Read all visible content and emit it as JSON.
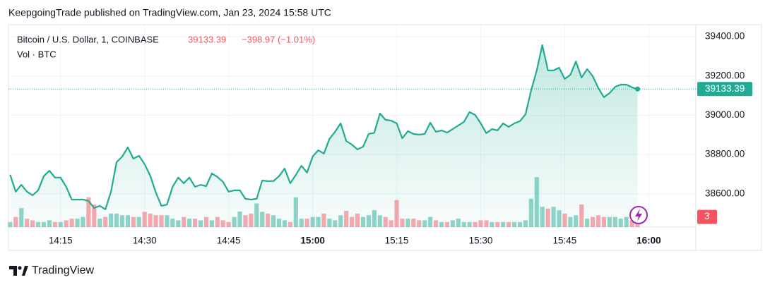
{
  "header": "KeepgoingTrade published on TradingView.com, Jan 23, 2024 15:58 UTC",
  "footer": "TradingView",
  "chart_data": {
    "type": "area",
    "change": "−398.97 (−1.01%)",
    "x": [
      846,
      847,
      848,
      849,
      850,
      851,
      852,
      853,
      854,
      855,
      856,
      857,
      858,
      859,
      860,
      861,
      862,
      863,
      864,
      865,
      866,
      867,
      868,
      869,
      870,
      871,
      872,
      873,
      874,
      875,
      876,
      877,
      878,
      879,
      880,
      881,
      882,
      883,
      884,
      885,
      886,
      887,
      888,
      889,
      890,
      891,
      892,
      893,
      894,
      895,
      896,
      897,
      898,
      899,
      900,
      901,
      902,
      903,
      904,
      905,
      906,
      907,
      908,
      909,
      910,
      911,
      912,
      913,
      914,
      915,
      916,
      917,
      918,
      919,
      920,
      921,
      922,
      923,
      924,
      925,
      926,
      927,
      928,
      929,
      930,
      931,
      932,
      933,
      934,
      935,
      936,
      937,
      938,
      939,
      940,
      941,
      942,
      943,
      944,
      945,
      946,
      947,
      948,
      949,
      950,
      951,
      952,
      953,
      954,
      955,
      956,
      957,
      958
    ],
    "series": [
      {
        "name": "Bitcoin / U.S. Dollar, 1, COINBASE",
        "color": "#22ab94",
        "values": [
          38697,
          38611,
          38646,
          38611,
          38593,
          38618,
          38690,
          38718,
          38683,
          38683,
          38636,
          38571,
          38571,
          38571,
          38564,
          38528,
          38539,
          38521,
          38611,
          38761,
          38790,
          38837,
          38779,
          38794,
          38751,
          38693,
          38607,
          38539,
          38546,
          38636,
          38683,
          38654,
          38683,
          38636,
          38646,
          38639,
          38704,
          38686,
          38661,
          38611,
          38618,
          38618,
          38575,
          38571,
          38575,
          38668,
          38665,
          38665,
          38690,
          38729,
          38654,
          38697,
          38743,
          38708,
          38790,
          38822,
          38805,
          38880,
          38916,
          38959,
          38869,
          38851,
          38826,
          38840,
          38905,
          38911,
          39009,
          38977,
          38973,
          38959,
          38883,
          38919,
          38905,
          38901,
          38905,
          38962,
          38916,
          38923,
          38912,
          38930,
          38948,
          38966,
          39016,
          39002,
          38959,
          38909,
          38930,
          38923,
          38959,
          38941,
          38959,
          38970,
          39005,
          39127,
          39228,
          39357,
          39228,
          39228,
          39242,
          39185,
          39206,
          39274,
          39192,
          39235,
          39199,
          39138,
          39092,
          39113,
          39145,
          39156,
          39156,
          39142,
          39133.39
        ]
      },
      {
        "name": "Vol · BTC",
        "axis": "y2",
        "color": "#22ab94",
        "values": [
          1.5,
          3,
          5.6,
          2.5,
          2,
          1.5,
          1.5,
          2,
          1.5,
          1.5,
          2,
          2.5,
          2.5,
          3,
          8.8,
          6.7,
          2.5,
          3,
          4,
          4,
          3.5,
          3.5,
          3,
          3,
          4.5,
          4,
          3.5,
          3.5,
          3.5,
          2.5,
          2,
          3,
          2.5,
          2.5,
          2,
          3,
          2,
          3,
          2,
          1.5,
          3,
          4.6,
          3.5,
          4,
          7,
          4.5,
          4,
          3.5,
          2.5,
          2,
          1.5,
          8.8,
          2.5,
          2.5,
          3,
          3,
          4,
          2.5,
          2,
          3.5,
          4.8,
          3,
          4,
          3,
          3.5,
          5,
          3.5,
          3,
          2,
          8,
          2.5,
          2.5,
          2.5,
          2,
          2,
          3,
          2,
          1.5,
          1.5,
          2,
          2.5,
          1.5,
          1.5,
          1.5,
          2,
          2,
          1.5,
          1.5,
          1.5,
          1.5,
          1.5,
          1.5,
          2,
          8.4,
          14.8,
          6,
          5.5,
          6,
          5,
          4,
          3,
          3.5,
          6.7,
          2.5,
          3,
          3.5,
          3,
          3,
          3,
          2.5,
          3,
          2,
          3
        ]
      }
    ],
    "down_color": "#f7525f",
    "xlim": [
      845.7,
      968.4
    ],
    "xticks": [
      {
        "value": 855,
        "label": "14:15"
      },
      {
        "value": 870,
        "label": "14:30"
      },
      {
        "value": 885,
        "label": "14:45"
      },
      {
        "value": 900,
        "label": "15:00"
      },
      {
        "value": 915,
        "label": "15:15"
      },
      {
        "value": 930,
        "label": "15:30"
      },
      {
        "value": 945,
        "label": "15:45"
      },
      {
        "value": 960,
        "label": "16:00"
      }
    ],
    "ylim": [
      38431,
      39461
    ],
    "yticks": [
      {
        "value": 38600,
        "label": "38600.00"
      },
      {
        "value": 38800,
        "label": "38800.00"
      },
      {
        "value": 39000,
        "label": "39000.00"
      },
      {
        "value": 39200,
        "label": "39200.00"
      },
      {
        "value": 39400,
        "label": "39400.00"
      }
    ],
    "y2lim": [
      0,
      60
    ],
    "grid": true
  }
}
